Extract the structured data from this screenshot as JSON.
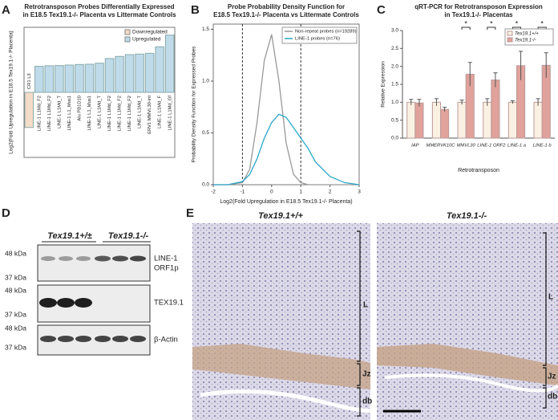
{
  "chart_data": [
    {
      "type": "bar",
      "panel": "A",
      "title": [
        "Retrotransposon Probes Differentially Expressed",
        "in E18.5 Tex19.1-/- Placenta vs Littermate Controls"
      ],
      "ylabel": "Log2(Fold Upregulation in E18.5 Tex19.1-/- Placenta)",
      "categories": [
        "CR1 L3",
        "LINE-1 L1Md_F2",
        "LINE-1 L1Md_F2",
        "LINE-1 L1Md_T",
        "LINE-1 L1_Mus1",
        "Alu PB1D10",
        "LINE-1 L1_Mus1",
        "LINE-1 L1Md_T",
        "LINE-1 L1Md_F2",
        "LINE-1 L1Md_F2",
        "LINE-1 L1Md_F2",
        "LINE-1 L1Md_T",
        "ERV1 MMVL30-int",
        "LINE-1 L1Md_F",
        "LINE-1 L1Md_Gf"
      ],
      "series": [
        {
          "name": "Downregulated",
          "color": "#f3dcc8",
          "values": [
            -1.35,
            null,
            null,
            null,
            null,
            null,
            null,
            null,
            null,
            null,
            null,
            null,
            null,
            null,
            null
          ]
        },
        {
          "name": "Upregulated",
          "color": "#bfdbea",
          "values": [
            null,
            1.0,
            1.02,
            1.03,
            1.05,
            1.07,
            1.08,
            1.12,
            1.3,
            1.38,
            1.45,
            1.47,
            1.5,
            1.75,
            2.2
          ]
        }
      ],
      "ylim": [
        -2.5,
        2.5
      ],
      "legend": "upper-right"
    },
    {
      "type": "line",
      "panel": "B",
      "title": [
        "Probe Probability Density Function for",
        "E18.5 Tex19.1-/- Placenta vs Littermate Controls"
      ],
      "xlabel": "Log2(Fold Upregulation in E18.5 Tex19.1-/- Placenta)",
      "ylabel": "Probability Density Function for Expressed Probes",
      "x": [
        -2,
        -1.5,
        -1,
        -0.75,
        -0.5,
        -0.25,
        0,
        0.25,
        0.5,
        0.75,
        1,
        1.25,
        1.5,
        2,
        2.5,
        3
      ],
      "series": [
        {
          "name": "Non-repeat probes (n=19289)",
          "color": "#999999",
          "values": [
            0,
            0,
            0.02,
            0.15,
            0.6,
            1.2,
            1.45,
            1.0,
            0.4,
            0.1,
            0.02,
            0,
            0,
            0,
            0,
            0
          ]
        },
        {
          "name": "LINE-1 probes (n=76)",
          "color": "#2aa6c9",
          "values": [
            0,
            0,
            0.03,
            0.1,
            0.25,
            0.45,
            0.6,
            0.68,
            0.65,
            0.55,
            0.45,
            0.35,
            0.22,
            0.08,
            0.02,
            0
          ]
        }
      ],
      "xlim": [
        -2,
        3
      ],
      "xticks": [
        -2,
        -1,
        0,
        1,
        2,
        3
      ],
      "ylim": [
        0,
        1.55
      ],
      "yticks": [
        {
          "value": 0,
          "label": "0.0"
        },
        0.5,
        {
          "value": 1,
          "label": "1.0"
        },
        1.5
      ],
      "vlines": [
        -1,
        1
      ],
      "legend": "upper-right"
    },
    {
      "type": "grouped_bar",
      "panel": "C",
      "title": [
        "qRT-PCR for Retrotransposon Expression",
        "in Tex19.1-/- Placentas"
      ],
      "xlabel": "Retrotransposon",
      "ylabel": "Relative Expression",
      "categories": [
        "IAP",
        "MMERVK10C",
        "MMVL30",
        "LINE-1 ORF2",
        "LINE-1 a",
        "LINE-1 b"
      ],
      "series": [
        {
          "name": "Tex19.1+/+",
          "color": "#fbf1e2",
          "values": [
            1.0,
            1.0,
            1.0,
            1.0,
            1.0,
            1.0
          ],
          "errors": [
            0.08,
            0.1,
            0.06,
            0.1,
            0.04,
            0.1
          ]
        },
        {
          "name": "Tex19.1-/-",
          "color": "#e0a29b",
          "values": [
            0.98,
            0.8,
            1.78,
            1.62,
            2.02,
            2.03
          ],
          "errors": [
            0.1,
            0.06,
            0.33,
            0.2,
            0.4,
            0.35
          ]
        }
      ],
      "ylim": [
        0,
        3
      ],
      "yticks": [
        {
          "value": 0,
          "label": "0.0"
        },
        0.5,
        {
          "value": 1,
          "label": "1.0"
        },
        1.5,
        {
          "value": 2,
          "label": "2.0"
        },
        2.5,
        {
          "value": 3,
          "label": "3.0"
        }
      ],
      "significant": [
        false,
        false,
        true,
        true,
        true,
        true
      ],
      "significance_label": "*",
      "legend": "upper-right"
    }
  ],
  "blot": {
    "panel": "D",
    "groups": [
      "Tex19.1+/±",
      "Tex19.1-/-"
    ],
    "blots": [
      {
        "markers": [
          "48 kDa",
          "37 kDa"
        ],
        "label": [
          "LINE-1",
          "ORF1p"
        ]
      },
      {
        "markers": [
          "48 kDa",
          "37 kDa"
        ],
        "label": "TEX19.1"
      },
      {
        "markers": [
          "48 kDa",
          "37 kDa"
        ],
        "label": "β-Actin"
      }
    ]
  },
  "histology": {
    "panel": "E",
    "images": [
      {
        "genotype": "Tex19.1+/+",
        "zones": [
          "L",
          "Jz",
          "db"
        ]
      },
      {
        "genotype": "Tex19.1-/-",
        "zones": [
          "L",
          "Jz",
          "db"
        ]
      }
    ]
  }
}
